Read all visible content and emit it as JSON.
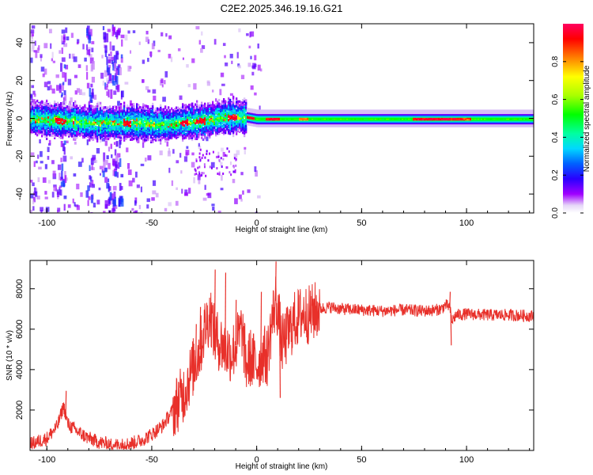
{
  "title": "C2E2.2025.346.19.16.G21",
  "colors": {
    "snr_line": "#e8302a",
    "axis": "#000000",
    "background": "#ffffff",
    "spectrum_low": "#c8a8f0",
    "spectrum_mid": "#10c8d8",
    "spectrum_high": "#f01030"
  },
  "chart_data": [
    {
      "type": "heatmap",
      "name": "spectrogram",
      "xlabel": "Height of straight line (km)",
      "ylabel": "Frequency (Hz)",
      "xlim": [
        -108,
        132
      ],
      "ylim": [
        -50,
        50
      ],
      "x_ticks": [
        -100,
        -50,
        0,
        50,
        100
      ],
      "x_tick_labels": [
        "-100",
        "-50",
        "0",
        "50",
        "100"
      ],
      "y_ticks": [
        -40,
        -20,
        0,
        20,
        40
      ],
      "y_tick_labels": [
        "-40",
        "-20",
        "0",
        "20",
        "40"
      ],
      "ridge": {
        "description": "Dominant spectral line near 0 Hz",
        "x": [
          -105,
          -80,
          -60,
          -45,
          -35,
          -25,
          -15,
          -5,
          0,
          20,
          50,
          80,
          100,
          132
        ],
        "freq": [
          0,
          -2,
          -2,
          -3,
          -2,
          -1,
          1,
          1,
          0,
          0,
          0,
          0,
          0,
          0
        ]
      },
      "colorbar": {
        "label": "Normalized spectral amplitude",
        "range": [
          0.0,
          1.0
        ],
        "ticks": [
          0.0,
          0.2,
          0.4,
          0.6,
          0.8
        ],
        "tick_labels": [
          "0.0",
          "0.2",
          "0.4",
          "0.6",
          "0.8"
        ]
      }
    },
    {
      "type": "line",
      "name": "snr",
      "xlabel": "Height of straight line (km)",
      "ylabel": "SNR (10 * v/v)",
      "xlim": [
        -108,
        132
      ],
      "ylim": [
        0,
        9400
      ],
      "x_ticks": [
        -100,
        -50,
        0,
        50,
        100
      ],
      "x_tick_labels": [
        "-100",
        "-50",
        "0",
        "50",
        "100"
      ],
      "y_ticks": [
        2000,
        4000,
        6000,
        8000
      ],
      "y_tick_labels": [
        "2000",
        "4000",
        "6000",
        "8000"
      ],
      "series": [
        {
          "name": "SNR",
          "x": [
            -108,
            -100,
            -95,
            -92,
            -90,
            -85,
            -80,
            -75,
            -70,
            -65,
            -60,
            -55,
            -50,
            -45,
            -40,
            -35,
            -30,
            -27,
            -25,
            -22,
            -20,
            -18,
            -15,
            -12,
            -10,
            -7,
            -5,
            -3,
            0,
            3,
            5,
            7,
            9,
            10,
            12,
            15,
            18,
            20,
            22,
            25,
            28,
            30,
            35,
            40,
            50,
            60,
            70,
            80,
            85,
            88,
            90,
            92,
            93,
            95,
            100,
            110,
            120,
            132
          ],
          "y": [
            300,
            600,
            1200,
            2200,
            1300,
            900,
            600,
            400,
            300,
            250,
            350,
            500,
            800,
            1200,
            2000,
            2800,
            4200,
            5000,
            6000,
            6800,
            5600,
            5400,
            5000,
            4800,
            5200,
            6000,
            4200,
            4600,
            4200,
            4800,
            4600,
            6200,
            7400,
            7000,
            5200,
            5800,
            6400,
            6600,
            6800,
            6700,
            6900,
            7000,
            7100,
            7000,
            6950,
            6900,
            6950,
            6900,
            6950,
            7000,
            7200,
            7100,
            6400,
            6700,
            6750,
            6700,
            6700,
            6650
          ],
          "spikes": [
            {
              "x": -91,
              "y": 2950
            },
            {
              "x": -29,
              "y": 6250
            },
            {
              "x": -27,
              "y": 7100
            },
            {
              "x": -20,
              "y": 8950
            },
            {
              "x": -15,
              "y": 8800
            },
            {
              "x": -10,
              "y": 7450
            },
            {
              "x": 2,
              "y": 7850
            },
            {
              "x": 9,
              "y": 9350
            },
            {
              "x": 11,
              "y": 2600
            },
            {
              "x": 92,
              "y": 7850
            },
            {
              "x": 92.5,
              "y": 5200
            }
          ]
        }
      ]
    }
  ]
}
